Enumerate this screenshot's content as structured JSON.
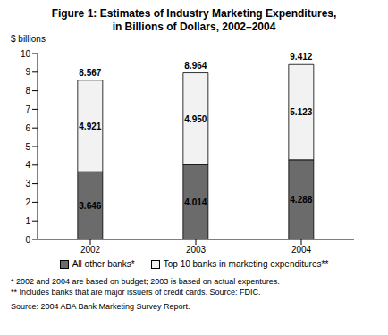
{
  "chart_data": {
    "type": "bar",
    "title": "Figure 1:  Estimates of Industry Marketing Expenditures, in Billions of Dollars, 2002–2004",
    "y_label": "$ billions",
    "categories": [
      "2002",
      "2003",
      "2004"
    ],
    "series": [
      {
        "name": "All other banks*",
        "color": "#6b6b6b",
        "values": [
          3.646,
          4.014,
          4.288
        ]
      },
      {
        "name": "Top 10 banks in marketing expenditures**",
        "color": "#f2f2f2",
        "values": [
          4.921,
          4.95,
          5.123
        ],
        "value_labels": [
          "4.921",
          "4.950",
          "5.123"
        ]
      }
    ],
    "totals": [
      8.567,
      8.964,
      9.412
    ],
    "ylim": [
      0,
      10
    ],
    "yticks": [
      0,
      1,
      2,
      3,
      4,
      5,
      6,
      7,
      8,
      9,
      10
    ],
    "stacked": true,
    "data_labels": true,
    "grid": false,
    "legend": "bottom",
    "notes": [
      "* 2002 and 2004 are based on budget; 2003 is based on actual expentures.",
      "** Includes banks that are major issuers of credit cards. Source: FDIC."
    ],
    "source": "Source: 2004 ABA Bank Marketing Survey Report."
  }
}
